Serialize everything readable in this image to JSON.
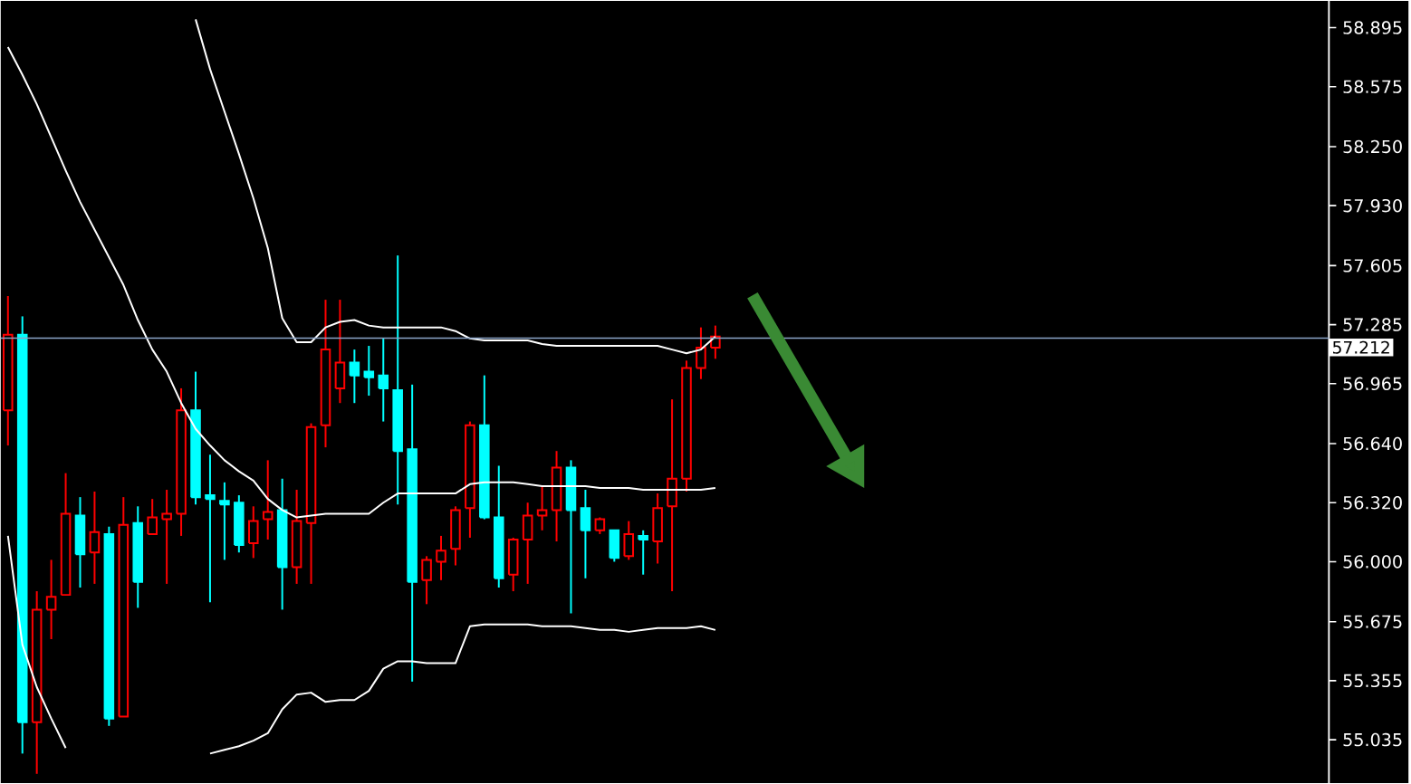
{
  "chart_data": {
    "type": "candlestick",
    "categories": [
      null,
      null,
      null,
      null,
      null,
      null,
      null,
      null,
      null,
      null,
      null,
      null,
      null,
      null,
      null,
      null,
      null,
      null,
      null,
      null,
      null,
      null,
      null,
      null,
      null,
      null,
      null,
      null,
      null,
      null,
      null,
      null,
      null,
      null,
      null,
      null,
      null,
      null,
      null,
      null,
      null,
      null,
      null,
      null,
      null,
      null,
      null,
      null,
      null,
      null,
      null,
      null,
      null,
      null,
      null,
      null,
      null,
      null,
      null,
      null,
      null,
      null,
      null,
      null,
      null,
      null,
      null,
      null,
      null,
      null,
      null,
      null,
      null,
      null,
      null,
      null,
      null,
      null,
      null,
      null,
      null,
      null,
      null,
      null,
      null,
      null,
      null,
      null,
      null,
      null,
      null,
      null
    ],
    "ohlc": [
      [
        56.82,
        57.44,
        56.63,
        57.23
      ],
      [
        57.23,
        57.33,
        54.96,
        55.13
      ],
      [
        55.13,
        55.84,
        54.85,
        55.74
      ],
      [
        55.74,
        56.01,
        55.58,
        55.81
      ],
      [
        55.82,
        56.48,
        55.82,
        56.26
      ],
      [
        56.25,
        56.35,
        55.86,
        56.04
      ],
      [
        56.05,
        56.38,
        55.88,
        56.16
      ],
      [
        56.15,
        56.19,
        55.11,
        55.15
      ],
      [
        55.16,
        56.35,
        55.16,
        56.2
      ],
      [
        56.21,
        56.3,
        55.75,
        55.89
      ],
      [
        56.15,
        56.34,
        56.15,
        56.24
      ],
      [
        56.23,
        56.39,
        55.88,
        56.26
      ],
      [
        56.26,
        56.94,
        56.14,
        56.82
      ],
      [
        56.82,
        57.03,
        56.31,
        56.35
      ],
      [
        56.36,
        56.58,
        55.78,
        56.34
      ],
      [
        56.33,
        56.43,
        56.01,
        56.31
      ],
      [
        56.32,
        56.36,
        56.05,
        56.09
      ],
      [
        56.1,
        56.3,
        56.02,
        56.22
      ],
      [
        56.23,
        56.55,
        56.12,
        56.27
      ],
      [
        56.28,
        56.45,
        55.74,
        55.97
      ],
      [
        55.97,
        56.39,
        55.88,
        56.22
      ],
      [
        56.21,
        56.75,
        55.88,
        56.73
      ],
      [
        56.74,
        57.42,
        56.62,
        57.15
      ],
      [
        56.94,
        57.42,
        56.86,
        57.08
      ],
      [
        57.08,
        57.15,
        56.86,
        57.01
      ],
      [
        57.03,
        57.17,
        56.9,
        57.0
      ],
      [
        57.01,
        57.21,
        56.76,
        56.94
      ],
      [
        56.93,
        57.66,
        56.31,
        56.6
      ],
      [
        56.61,
        56.96,
        55.35,
        55.89
      ],
      [
        55.9,
        56.03,
        55.77,
        56.01
      ],
      [
        56.0,
        56.14,
        55.9,
        56.06
      ],
      [
        56.07,
        56.3,
        55.98,
        56.28
      ],
      [
        56.29,
        56.76,
        56.13,
        56.74
      ],
      [
        56.74,
        57.01,
        56.23,
        56.24
      ],
      [
        56.24,
        56.52,
        55.86,
        55.91
      ],
      [
        55.93,
        56.13,
        55.84,
        56.12
      ],
      [
        56.12,
        56.32,
        55.88,
        56.25
      ],
      [
        56.25,
        56.41,
        56.17,
        56.28
      ],
      [
        56.28,
        56.6,
        56.11,
        56.51
      ],
      [
        56.51,
        56.55,
        55.72,
        56.28
      ],
      [
        56.29,
        56.39,
        55.91,
        56.17
      ],
      [
        56.17,
        56.24,
        56.15,
        56.23
      ],
      [
        56.17,
        56.17,
        56.0,
        56.02
      ],
      [
        56.03,
        56.22,
        56.01,
        56.15
      ],
      [
        56.14,
        56.17,
        55.93,
        56.12
      ],
      [
        56.11,
        56.37,
        55.99,
        56.29
      ],
      [
        56.3,
        56.88,
        55.84,
        56.45
      ],
      [
        56.45,
        57.09,
        56.38,
        57.05
      ],
      [
        57.05,
        57.27,
        56.99,
        57.16
      ],
      [
        57.16,
        57.28,
        57.1,
        57.22
      ],
      null,
      null,
      null,
      null,
      null,
      null,
      null,
      null,
      null,
      null,
      null,
      null,
      null,
      null,
      null,
      null,
      null,
      null,
      null,
      null,
      null,
      null,
      null,
      null,
      null,
      null,
      null,
      null,
      null,
      null,
      null,
      null,
      null,
      null,
      null,
      null,
      null,
      null,
      null,
      null,
      null,
      null
    ],
    "colors": [
      "#ff0000",
      "#00ffff",
      "#ff0000",
      "#ff0000",
      "#ff0000",
      "#00ffff",
      "#ff0000",
      "#00ffff",
      "#ff0000",
      "#00ffff",
      "#ff0000",
      "#ff0000",
      "#ff0000",
      "#00ffff",
      "#00ffff",
      "#00ffff",
      "#00ffff",
      "#ff0000",
      "#ff0000",
      "#00ffff",
      "#ff0000",
      "#ff0000",
      "#ff0000",
      "#ff0000",
      "#00ffff",
      "#00ffff",
      "#00ffff",
      "#00ffff",
      "#00ffff",
      "#ff0000",
      "#ff0000",
      "#ff0000",
      "#ff0000",
      "#00ffff",
      "#00ffff",
      "#ff0000",
      "#ff0000",
      "#ff0000",
      "#ff0000",
      "#00ffff",
      "#00ffff",
      "#ff0000",
      "#00ffff",
      "#ff0000",
      "#00ffff",
      "#ff0000",
      "#ff0000",
      "#ff0000",
      "#ff0000",
      "#ff0000",
      null,
      null,
      null,
      null,
      null,
      null,
      null,
      null,
      null,
      null,
      null,
      null,
      null,
      null,
      null,
      null,
      null,
      null,
      null,
      null,
      null,
      null,
      null,
      null,
      null,
      null,
      null,
      null,
      null,
      null,
      null,
      null,
      null,
      null,
      null,
      null,
      null,
      null,
      null,
      null,
      null,
      null
    ],
    "series": [
      {
        "type": "line",
        "color": "#ffffff",
        "values": [
          58.79,
          58.64,
          58.48,
          58.3,
          58.12,
          57.95,
          57.8,
          57.65,
          57.5,
          57.31,
          57.15,
          57.03,
          56.86,
          56.72,
          56.63,
          56.55,
          56.49,
          56.44,
          56.34,
          56.28,
          56.24,
          56.25,
          56.26,
          56.26,
          56.26,
          56.26,
          56.32,
          56.37,
          56.37,
          56.37,
          56.37,
          56.37,
          56.42,
          56.43,
          56.43,
          56.43,
          56.42,
          56.41,
          56.41,
          56.41,
          56.41,
          56.4,
          56.4,
          56.4,
          56.39,
          56.39,
          56.39,
          56.39,
          56.39,
          56.4,
          null,
          null,
          null,
          null,
          null,
          null,
          null,
          null,
          null,
          null,
          null,
          null,
          null,
          null,
          null,
          null,
          null,
          null,
          null,
          null,
          null,
          null,
          null,
          null,
          null,
          null,
          null,
          null,
          null,
          null,
          null,
          null,
          null,
          null,
          null,
          null,
          null,
          null,
          null,
          null,
          null,
          null
        ]
      },
      {
        "type": "line",
        "color": "#ffffff",
        "values": [
          null,
          null,
          null,
          null,
          null,
          null,
          null,
          null,
          null,
          null,
          null,
          null,
          null,
          58.94,
          58.67,
          58.44,
          58.21,
          57.97,
          57.7,
          57.32,
          57.19,
          57.19,
          57.27,
          57.3,
          57.31,
          57.28,
          57.27,
          57.27,
          57.27,
          57.27,
          57.27,
          57.25,
          57.21,
          57.2,
          57.2,
          57.2,
          57.2,
          57.18,
          57.17,
          57.17,
          57.17,
          57.17,
          57.17,
          57.17,
          57.17,
          57.17,
          57.15,
          57.13,
          57.15,
          57.22,
          null,
          null,
          null,
          null,
          null,
          null,
          null,
          null,
          null,
          null,
          null,
          null,
          null,
          null,
          null,
          null,
          null,
          null,
          null,
          null,
          null,
          null,
          null,
          null,
          null,
          null,
          null,
          null,
          null,
          null,
          null,
          null,
          null,
          null,
          null,
          null,
          null,
          null,
          null,
          null,
          null,
          null
        ]
      },
      {
        "type": "line",
        "color": "#ffffff",
        "values": [
          56.14,
          55.55,
          55.32,
          55.15,
          54.99,
          null,
          null,
          null,
          null,
          null,
          null,
          null,
          null,
          null,
          54.96,
          54.98,
          55.0,
          55.03,
          55.07,
          55.2,
          55.28,
          55.29,
          55.24,
          55.25,
          55.25,
          55.3,
          55.42,
          55.46,
          55.46,
          55.45,
          55.45,
          55.45,
          55.65,
          55.66,
          55.66,
          55.66,
          55.66,
          55.65,
          55.65,
          55.65,
          55.64,
          55.63,
          55.63,
          55.62,
          55.63,
          55.64,
          55.64,
          55.64,
          55.65,
          55.63,
          null,
          null,
          null,
          null,
          null,
          null,
          null,
          null,
          null,
          null,
          null,
          null,
          null,
          null,
          null,
          null,
          null,
          null,
          null,
          null,
          null,
          null,
          null,
          null,
          null,
          null,
          null,
          null,
          null,
          null,
          null,
          null,
          null,
          null,
          null,
          null,
          null,
          null,
          null,
          null,
          null,
          null
        ]
      }
    ],
    "ylim": [
      54.8,
      59.04
    ],
    "yticks": [
      58.895,
      58.575,
      {
        "value": 58.25,
        "label": "58.250"
      },
      {
        "value": 57.93,
        "label": "57.930"
      },
      57.605,
      57.285,
      56.965,
      {
        "value": 56.64,
        "label": "56.640"
      },
      {
        "value": 56.32,
        "label": "56.320"
      },
      {
        "value": 56.0,
        "label": "56.000"
      },
      55.675,
      55.355,
      55.035
    ],
    "ref_lines": [
      {
        "axis": "y",
        "value": 57.212,
        "label": "57.212",
        "color": "#8aa4c8"
      }
    ],
    "tick_labels": "y"
  }
}
